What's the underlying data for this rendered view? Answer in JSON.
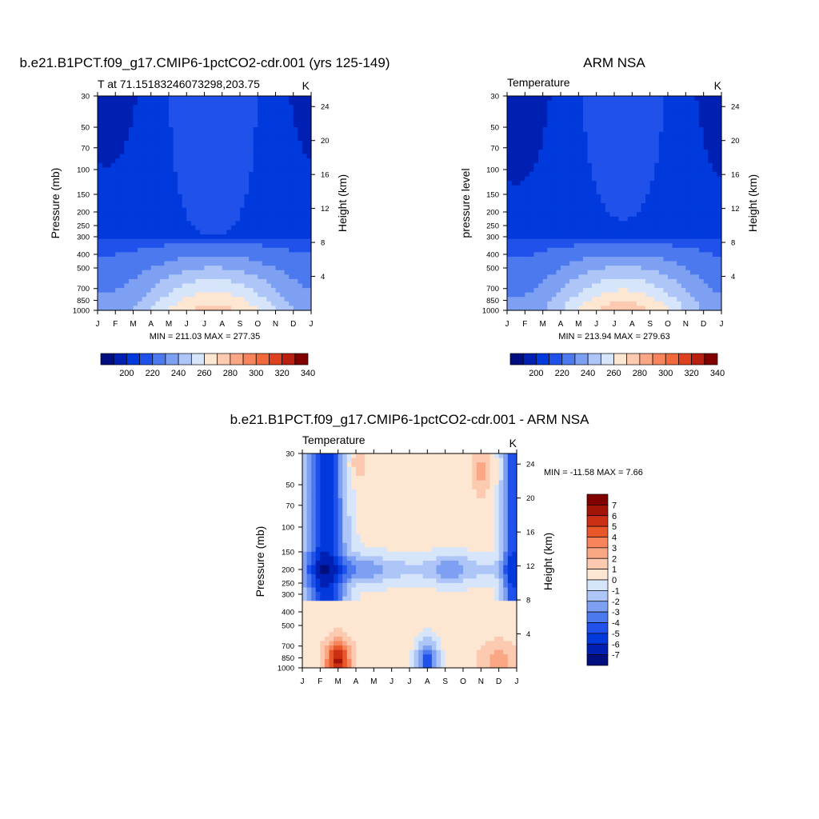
{
  "colors": {
    "temp_levels": [
      "#000f7f",
      "#0020b4",
      "#0039dc",
      "#2052eb",
      "#4d79ef",
      "#7ea0f2",
      "#aec6f7",
      "#d7e5fb",
      "#fde7d3",
      "#fbcab0",
      "#f9a784",
      "#f7845a",
      "#f06a3c",
      "#de4020",
      "#b92010",
      "#800000"
    ],
    "diff_levels": [
      "#000f7f",
      "#0020b4",
      "#0039dc",
      "#2052eb",
      "#4d79ef",
      "#7ea0f2",
      "#aec6f7",
      "#d7e5fb",
      "#fde7d3",
      "#fbcab0",
      "#f9a784",
      "#f7845a",
      "#e8572a",
      "#cb3014",
      "#a31408",
      "#800000"
    ]
  },
  "chart_data": [
    {
      "type": "heatmap",
      "title": "b.e21.B1PCT.f09_g17.CMIP6-1pctCO2-cdr.001 (yrs 125-149)",
      "left_label": "T at 71.15183246073298,203.75",
      "right_label": "K",
      "ylabel": "Pressure (mb)",
      "ylabel_right": "Height (km)",
      "x_ticks": [
        "J",
        "F",
        "M",
        "A",
        "M",
        "J",
        "J",
        "A",
        "S",
        "O",
        "N",
        "D",
        "J"
      ],
      "y_ticks": [
        "30",
        "50",
        "70",
        "100",
        "150",
        "200",
        "250",
        "300",
        "400",
        "500",
        "700",
        "850",
        "1000"
      ],
      "y_right_ticks": [
        "24",
        "20",
        "16",
        "12",
        "8",
        "4"
      ],
      "minmax": "MIN = 211.03 MAX = 277.35",
      "colorbar_labels": [
        "200",
        "220",
        "240",
        "260",
        "280",
        "300",
        "320",
        "340"
      ]
    },
    {
      "type": "heatmap",
      "title": "ARM NSA",
      "left_label": "Temperature",
      "right_label": "K",
      "ylabel": "pressure level",
      "ylabel_right": "Height (km)",
      "x_ticks": [
        "J",
        "F",
        "M",
        "A",
        "M",
        "J",
        "J",
        "A",
        "S",
        "O",
        "N",
        "D",
        "J"
      ],
      "y_ticks": [
        "30",
        "50",
        "70",
        "100",
        "150",
        "200",
        "250",
        "300",
        "400",
        "500",
        "700",
        "850",
        "1000"
      ],
      "y_right_ticks": [
        "24",
        "20",
        "16",
        "12",
        "8",
        "4"
      ],
      "minmax": "MIN = 213.94 MAX = 279.63",
      "colorbar_labels": [
        "200",
        "220",
        "240",
        "260",
        "280",
        "300",
        "320",
        "340"
      ]
    },
    {
      "type": "heatmap",
      "title": "b.e21.B1PCT.f09_g17.CMIP6-1pctCO2-cdr.001 - ARM NSA",
      "left_label": "Temperature",
      "right_label": "K",
      "ylabel": "Pressure (mb)",
      "ylabel_right": "Height (km)",
      "x_ticks": [
        "J",
        "F",
        "M",
        "A",
        "M",
        "J",
        "J",
        "A",
        "S",
        "O",
        "N",
        "D",
        "J"
      ],
      "y_ticks": [
        "30",
        "50",
        "70",
        "100",
        "150",
        "200",
        "250",
        "300",
        "400",
        "500",
        "700",
        "850",
        "1000"
      ],
      "y_right_ticks": [
        "24",
        "20",
        "16",
        "12",
        "8",
        "4"
      ],
      "minmax": "MIN = -11.58 MAX =   7.66",
      "colorbar_labels": [
        "7",
        "6",
        "5",
        "4",
        "3",
        "2",
        "1",
        "0",
        "-1",
        "-2",
        "-3",
        "-4",
        "-5",
        "-6",
        "-7"
      ]
    }
  ]
}
